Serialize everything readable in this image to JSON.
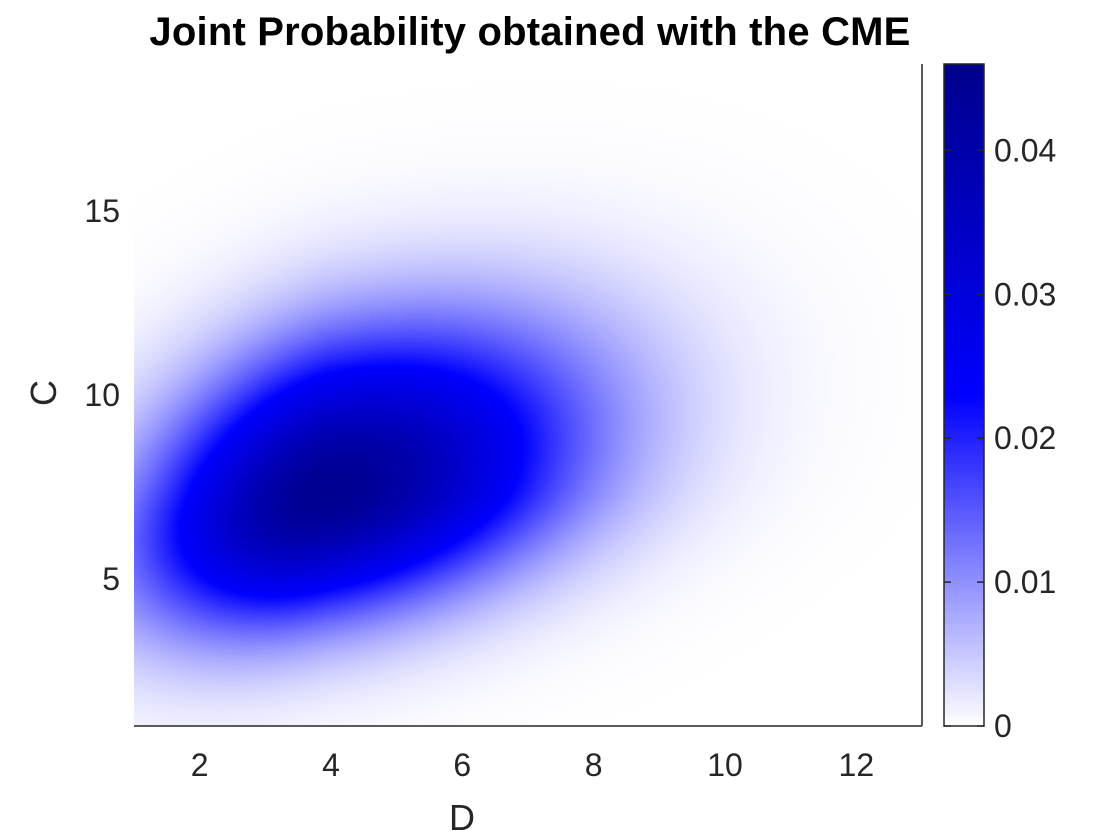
{
  "chart_data": {
    "type": "heatmap",
    "title": "Joint Probability obtained with the CME",
    "xlabel": "D",
    "ylabel": "C",
    "xlim": [
      1,
      13
    ],
    "ylim": [
      1,
      19
    ],
    "xticks": [
      2,
      4,
      6,
      8,
      10,
      12
    ],
    "yticks": [
      5,
      10,
      15
    ],
    "peak": {
      "x": 3.9,
      "y": 7.3,
      "value": 0.045
    },
    "colorbar": {
      "min": 0,
      "max": 0.046,
      "ticks": [
        0,
        0.01,
        0.02,
        0.03,
        0.04
      ],
      "colors": [
        "#ffffff",
        "#0000ff",
        "#00008b"
      ]
    },
    "grid": false
  }
}
